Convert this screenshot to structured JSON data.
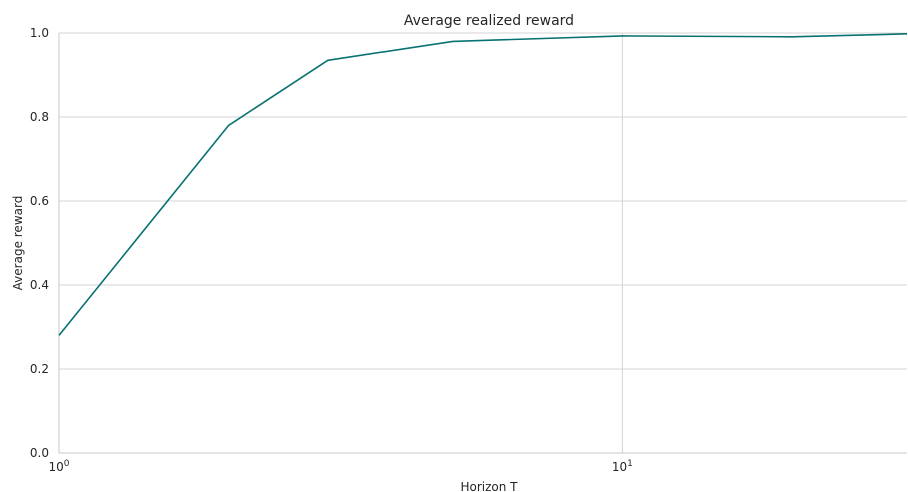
{
  "chart_data": {
    "type": "line",
    "title": "Average realized reward",
    "xlabel": "Horizon T",
    "ylabel": "Average reward",
    "x_scale": "log",
    "xlim": [
      1,
      32
    ],
    "ylim": [
      0.0,
      1.0
    ],
    "x_ticks": [
      {
        "value": 1,
        "base": "10",
        "exp": "0"
      },
      {
        "value": 10,
        "base": "10",
        "exp": "1"
      }
    ],
    "y_ticks": [
      {
        "value": 0.0,
        "label": "0.0"
      },
      {
        "value": 0.2,
        "label": "0.2"
      },
      {
        "value": 0.4,
        "label": "0.4"
      },
      {
        "value": 0.6,
        "label": "0.6"
      },
      {
        "value": 0.8,
        "label": "0.8"
      },
      {
        "value": 1.0,
        "label": "1.0"
      }
    ],
    "grid": true,
    "series": [
      {
        "color": "#0a7272",
        "x": [
          1,
          2,
          3,
          5,
          10,
          20,
          32
        ],
        "y": [
          0.28,
          0.78,
          0.935,
          0.98,
          0.993,
          0.991,
          0.998
        ]
      }
    ]
  }
}
